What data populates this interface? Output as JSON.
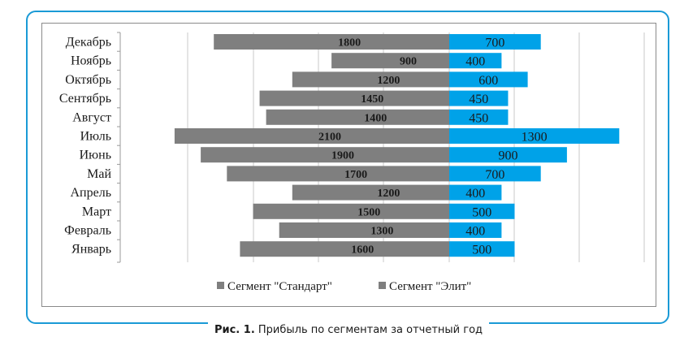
{
  "caption": {
    "number": "Рис. 1.",
    "text": "Прибыль по сегментам за отчетный год"
  },
  "colors": {
    "frame": "#1a9ad6",
    "standard": "#7f7f7f",
    "elite": "#00a2e8"
  },
  "chart_data": {
    "type": "bar",
    "orientation": "horizontal",
    "stacked": true,
    "title": "",
    "categories": [
      "Январь",
      "Февраль",
      "Март",
      "Апрель",
      "Май",
      "Июнь",
      "Июль",
      "Август",
      "Сентябрь",
      "Октябрь",
      "Ноябрь",
      "Декабрь"
    ],
    "series": [
      {
        "name": "Сегмент \"Стандарт\"",
        "values": [
          1600,
          1300,
          1500,
          1200,
          1700,
          1900,
          2100,
          1400,
          1450,
          1200,
          900,
          1800
        ],
        "direction": "left"
      },
      {
        "name": "Сегмент \"Элит\"",
        "values": [
          500,
          400,
          500,
          400,
          700,
          900,
          1300,
          450,
          450,
          600,
          400,
          700
        ],
        "direction": "right"
      }
    ],
    "grid": true,
    "legend": "bottom"
  }
}
